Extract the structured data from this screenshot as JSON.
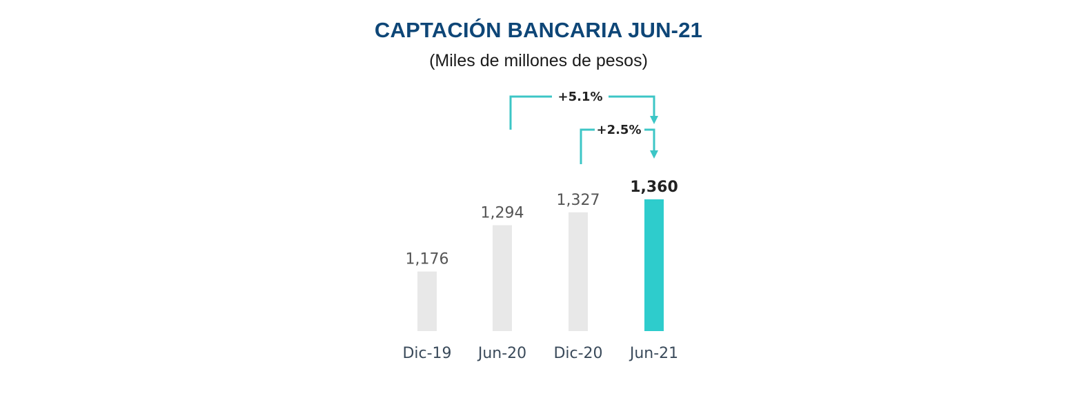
{
  "chart_data": {
    "type": "bar",
    "title": "CAPTACIÓN BANCARIA JUN-21",
    "subtitle": "(Miles de millones de pesos)",
    "categories": [
      "Dic-19",
      "Jun-20",
      "Dic-20",
      "Jun-21"
    ],
    "values": [
      1176,
      1294,
      1327,
      1360
    ],
    "value_labels": [
      "1,176",
      "1,294",
      "1,327",
      "1,360"
    ],
    "highlight_index": 3,
    "bar_color": "#e8e8e8",
    "highlight_color": "#2ecccc",
    "annotation_color": "#3cc6c6",
    "annotations": [
      {
        "label": "+5.1%",
        "from": "Jun-20",
        "to": "Jun-21"
      },
      {
        "label": "+2.5%",
        "from": "Dic-20",
        "to": "Jun-21"
      }
    ]
  }
}
